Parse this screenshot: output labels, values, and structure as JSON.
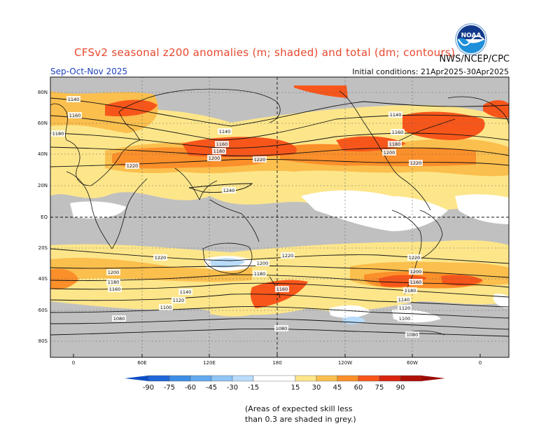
{
  "title": "CFSv2 seasonal z200 anomalies (m; shaded) and total (dm; contours)",
  "season": "Sep-Oct-Nov 2025",
  "initial_conditions": "Initial conditions: 21Apr2025-30Apr2025",
  "agency": "NWS/NCEP/CPC",
  "logo_text": "NOAA",
  "footnote": [
    "(Areas of expected skill less",
    "than 0.3 are shaded in grey.)"
  ],
  "map": {
    "lat_labels": [
      "80N",
      "60N",
      "40N",
      "20N",
      "EQ",
      "20S",
      "40S",
      "60S",
      "80S"
    ],
    "lon_labels": [
      "0",
      "60E",
      "120E",
      "180",
      "120W",
      "60W",
      "0"
    ],
    "contour_labels": [
      "1140",
      "1160",
      "1180",
      "1140",
      "1160",
      "1180",
      "1200",
      "1220",
      "1240",
      "1140",
      "1160",
      "1180",
      "1200",
      "1220",
      "1220",
      "1220",
      "1220",
      "1200",
      "1180",
      "1160",
      "1140",
      "1120",
      "1100",
      "1080",
      "1200",
      "1180",
      "1160",
      "1220",
      "1200",
      "1180",
      "1160",
      "1140",
      "1120",
      "1100",
      "1080",
      "1080"
    ]
  },
  "colorbar": {
    "ticks": [
      "-90",
      "-75",
      "-60",
      "-45",
      "-30",
      "-15",
      "15",
      "30",
      "45",
      "60",
      "75",
      "90"
    ],
    "colors": [
      "#1f66d8",
      "#3c8ee6",
      "#62a8ef",
      "#8fc4f5",
      "#b8dcfa",
      "#ffffff",
      "#fde68a",
      "#fbbf4e",
      "#fb8f2a",
      "#f7561b",
      "#d9250f",
      "#b01005"
    ],
    "low_end_color": "#0d4fc4",
    "high_end_color": "#9a0c03"
  }
}
